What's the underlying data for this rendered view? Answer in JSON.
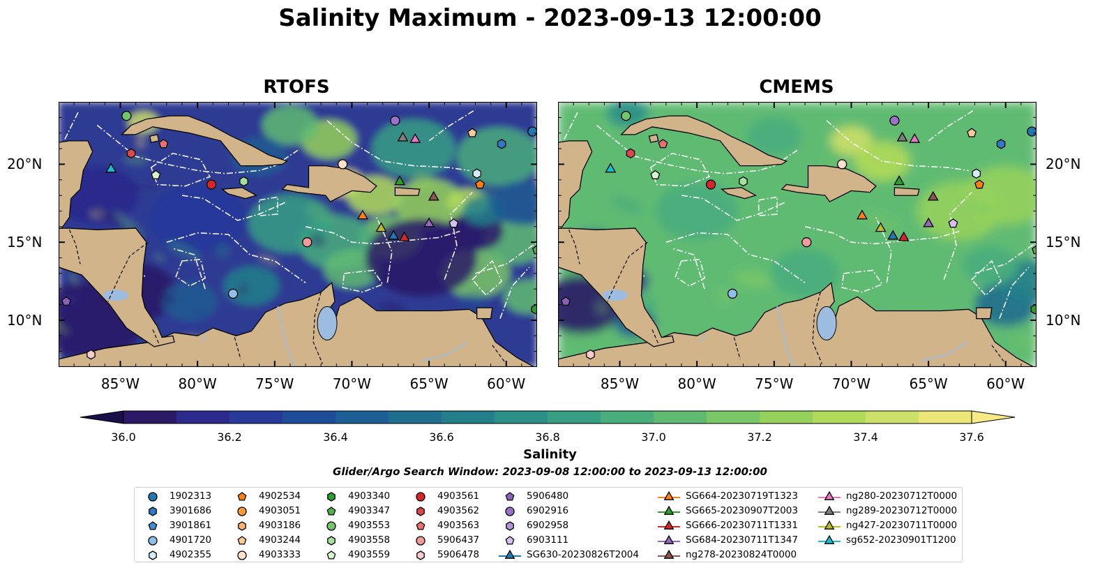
{
  "title": "Salinity Maximum - 2023-09-13 12:00:00",
  "panels": [
    {
      "title": "RTOFS",
      "theme": "rtofs"
    },
    {
      "title": "CMEMS",
      "theme": "cmems"
    }
  ],
  "lon_ticks": [
    "85°W",
    "80°W",
    "75°W",
    "70°W",
    "65°W",
    "60°W"
  ],
  "lat_ticks": [
    "20°N",
    "15°N",
    "10°N"
  ],
  "colorbar": {
    "label": "Salinity",
    "ticks": [
      "36.0",
      "36.2",
      "36.4",
      "36.6",
      "36.8",
      "37.0",
      "37.2",
      "37.4",
      "37.6"
    ],
    "colors": [
      "#2a1a66",
      "#2c2a8c",
      "#273a9a",
      "#1f4c99",
      "#1d5e94",
      "#1f6e8e",
      "#23808a",
      "#2a9088",
      "#379f84",
      "#4aad7c",
      "#60bb72",
      "#79c766",
      "#95d15c",
      "#b0da5a",
      "#ccdf68",
      "#ece67a"
    ]
  },
  "search_window": "Glider/Argo Search Window: 2023-09-08 12:00:00 to 2023-09-13 12:00:00",
  "legend": {
    "items": [
      {
        "label": "1902313",
        "marker": "circle",
        "color": "#1f77b4"
      },
      {
        "label": "3901686",
        "marker": "hexagon",
        "color": "#2b7bc8"
      },
      {
        "label": "3901861",
        "marker": "pentagon",
        "color": "#3c8fd6"
      },
      {
        "label": "4901720",
        "marker": "circle",
        "color": "#8ec1ea"
      },
      {
        "label": "4902355",
        "marker": "hexagon",
        "color": "#d5ecfb"
      },
      {
        "label": "4902534",
        "marker": "pentagon",
        "color": "#ff7f0e"
      },
      {
        "label": "4903051",
        "marker": "circle",
        "color": "#ff9a3c"
      },
      {
        "label": "4903186",
        "marker": "hexagon",
        "color": "#ffb26b"
      },
      {
        "label": "4903244",
        "marker": "pentagon",
        "color": "#ffcb95"
      },
      {
        "label": "4903333",
        "marker": "circle",
        "color": "#ffe2c8"
      },
      {
        "label": "4903340",
        "marker": "hexagon",
        "color": "#2ca02c"
      },
      {
        "label": "4903347",
        "marker": "pentagon",
        "color": "#4fb34a"
      },
      {
        "label": "4903553",
        "marker": "circle",
        "color": "#72c66a"
      },
      {
        "label": "4903558",
        "marker": "hexagon",
        "color": "#a4e29b"
      },
      {
        "label": "4903559",
        "marker": "pentagon",
        "color": "#d6f6cf"
      },
      {
        "label": "4903561",
        "marker": "circle",
        "color": "#d62728"
      },
      {
        "label": "4903562",
        "marker": "hexagon",
        "color": "#e0474a"
      },
      {
        "label": "4903563",
        "marker": "pentagon",
        "color": "#ec6f70"
      },
      {
        "label": "5906437",
        "marker": "circle",
        "color": "#f49a9a"
      },
      {
        "label": "5906478",
        "marker": "hexagon",
        "color": "#fbcaca"
      },
      {
        "label": "5906480",
        "marker": "pentagon",
        "color": "#8c61b5"
      },
      {
        "label": "6902916",
        "marker": "circle",
        "color": "#9b72c7"
      },
      {
        "label": "6902958",
        "marker": "hexagon",
        "color": "#b393dc"
      },
      {
        "label": "6903111",
        "marker": "pentagon",
        "color": "#d6c0f0"
      },
      {
        "label": "SG630-20230826T2004",
        "marker": "triangle",
        "color": "#1f77b4"
      },
      {
        "label": "SG664-20230719T1323",
        "marker": "triangle",
        "color": "#ff7f0e"
      },
      {
        "label": "SG665-20230907T2003",
        "marker": "triangle",
        "color": "#2ca02c"
      },
      {
        "label": "SG666-20230711T1331",
        "marker": "triangle",
        "color": "#d62728"
      },
      {
        "label": "SG684-20230711T1347",
        "marker": "triangle",
        "color": "#9467bd"
      },
      {
        "label": "ng278-20230824T0000",
        "marker": "triangle",
        "color": "#8c564b"
      },
      {
        "label": "ng280-20230712T0000",
        "marker": "triangle",
        "color": "#e377c2"
      },
      {
        "label": "ng289-20230712T0000",
        "marker": "triangle",
        "color": "#7f7f7f"
      },
      {
        "label": "ng427-20230711T0000",
        "marker": "triangle",
        "color": "#bcbd22"
      },
      {
        "label": "sg652-20230901T1200",
        "marker": "triangle",
        "color": "#17becf"
      }
    ]
  },
  "markers": [
    {
      "id": "1902313",
      "lon": -58.3,
      "lat": 22.1
    },
    {
      "id": "3901686",
      "lon": -60.3,
      "lat": 21.3
    },
    {
      "id": "4901720",
      "lon": -77.7,
      "lat": 11.7
    },
    {
      "id": "4902355",
      "lon": -61.9,
      "lat": 19.4
    },
    {
      "id": "4902534",
      "lon": -61.7,
      "lat": 18.7
    },
    {
      "id": "4903244",
      "lon": -62.2,
      "lat": 22.0
    },
    {
      "id": "4903333",
      "lon": -70.6,
      "lat": 20.0
    },
    {
      "id": "4903553",
      "lon": -84.6,
      "lat": 23.1
    },
    {
      "id": "4903347",
      "lon": -58.0,
      "lat": 14.5
    },
    {
      "id": "4903340",
      "lon": -58.1,
      "lat": 10.7
    },
    {
      "id": "4903558",
      "lon": -77.0,
      "lat": 18.9
    },
    {
      "id": "4903559",
      "lon": -82.7,
      "lat": 19.3
    },
    {
      "id": "4903561",
      "lon": -79.1,
      "lat": 18.7
    },
    {
      "id": "4903562",
      "lon": -84.3,
      "lat": 20.7
    },
    {
      "id": "4903563",
      "lon": -82.2,
      "lat": 21.3
    },
    {
      "id": "5906437",
      "lon": -72.9,
      "lat": 15.0
    },
    {
      "id": "5906478",
      "lon": -86.9,
      "lat": 7.8
    },
    {
      "id": "6902916",
      "lon": -67.2,
      "lat": 22.8
    },
    {
      "id": "5906480",
      "lon": -88.5,
      "lat": 11.2
    },
    {
      "id": "6903111",
      "lon": -63.4,
      "lat": 16.2
    },
    {
      "id": "SG630-20230826T2004",
      "lon": -67.3,
      "lat": 15.4
    },
    {
      "id": "SG664-20230719T1323",
      "lon": -69.3,
      "lat": 16.7
    },
    {
      "id": "SG665-20230907T2003",
      "lon": -66.9,
      "lat": 18.9
    },
    {
      "id": "SG666-20230711T1331",
      "lon": -66.6,
      "lat": 15.3
    },
    {
      "id": "SG684-20230711T1347",
      "lon": -65.0,
      "lat": 16.2
    },
    {
      "id": "ng278-20230824T0000",
      "lon": -64.7,
      "lat": 17.9
    },
    {
      "id": "ng280-20230712T0000",
      "lon": -65.9,
      "lat": 21.6
    },
    {
      "id": "ng289-20230712T0000",
      "lon": -66.7,
      "lat": 21.7
    },
    {
      "id": "ng427-20230711T0000",
      "lon": -68.1,
      "lat": 15.9
    },
    {
      "id": "sg652-20230901T1200",
      "lon": -85.6,
      "lat": 19.7
    }
  ]
}
